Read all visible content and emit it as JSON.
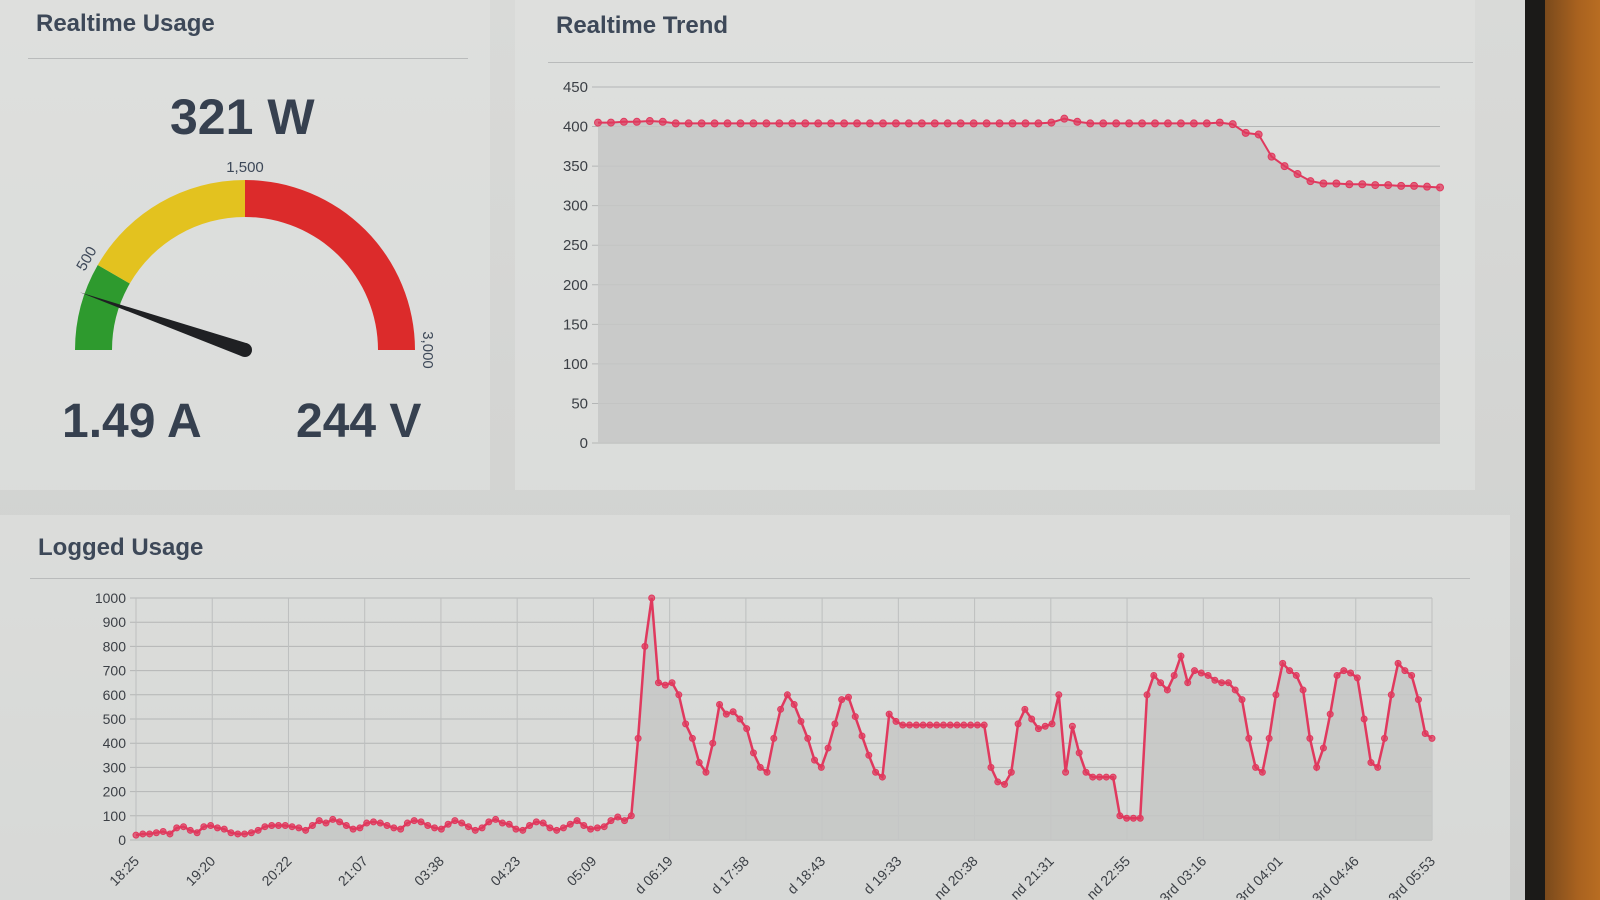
{
  "realtime_usage": {
    "title": "Realtime Usage",
    "power": "321 W",
    "current": "1.49 A",
    "voltage": "244 V",
    "gauge": {
      "value": 321,
      "min": 0,
      "max": 3000,
      "labels": [
        "500",
        "1,500",
        "3,000"
      ],
      "bands": [
        {
          "from": 0,
          "to": 500,
          "color": "#2e9a2e"
        },
        {
          "from": 500,
          "to": 1500,
          "color": "#e3c21f"
        },
        {
          "from": 1500,
          "to": 3000,
          "color": "#dc2b2b"
        }
      ]
    }
  },
  "realtime_trend": {
    "title": "Realtime Trend"
  },
  "logged_usage": {
    "title": "Logged Usage"
  },
  "colors": {
    "series": "#e0395e",
    "plot_fill": "#c6c7c6"
  },
  "chart_data": [
    {
      "type": "line",
      "title": "Realtime Trend",
      "xlabel": "",
      "ylabel": "",
      "ylim": [
        0,
        450
      ],
      "yticks": [
        "0",
        "50",
        "100",
        "150",
        "200",
        "250",
        "300",
        "350",
        "400",
        "450"
      ],
      "grid": true,
      "series": [
        {
          "values": [
            405,
            405,
            406,
            406,
            407,
            406,
            404,
            404,
            404,
            404,
            404,
            404,
            404,
            404,
            404,
            404,
            404,
            404,
            404,
            404,
            404,
            404,
            404,
            404,
            404,
            404,
            404,
            404,
            404,
            404,
            404,
            404,
            404,
            404,
            404,
            405,
            410,
            406,
            404,
            404,
            404,
            404,
            404,
            404,
            404,
            404,
            404,
            404,
            405,
            403,
            392,
            390,
            362,
            350,
            340,
            331,
            328,
            328,
            327,
            327,
            326,
            326,
            325,
            325,
            324,
            323
          ]
        }
      ]
    },
    {
      "type": "line",
      "title": "Logged Usage",
      "xlabel": "",
      "ylabel": "",
      "ylim": [
        0,
        1000
      ],
      "yticks": [
        "0",
        "100",
        "200",
        "300",
        "400",
        "500",
        "600",
        "700",
        "800",
        "900",
        "1000"
      ],
      "grid": true,
      "xticks": [
        "18:25",
        "19:20",
        "20:22",
        "21:07",
        "03:38",
        "04:23",
        "05:09",
        "d 06:19",
        "d 17:58",
        "d 18:43",
        "d 19:33",
        "nd 20:38",
        "nd 21:31",
        "nd 22:55",
        "3rd 03:16",
        "3rd 04:01",
        "3rd 04:46",
        "3rd 05:53"
      ],
      "series": [
        {
          "values": [
            20,
            25,
            25,
            30,
            35,
            25,
            50,
            55,
            40,
            30,
            55,
            60,
            50,
            45,
            30,
            25,
            25,
            30,
            40,
            55,
            60,
            60,
            60,
            55,
            50,
            40,
            60,
            80,
            70,
            85,
            75,
            60,
            45,
            50,
            70,
            75,
            70,
            60,
            50,
            45,
            70,
            80,
            75,
            60,
            50,
            45,
            65,
            80,
            70,
            55,
            40,
            50,
            75,
            85,
            70,
            65,
            45,
            40,
            60,
            75,
            70,
            50,
            40,
            50,
            65,
            80,
            60,
            45,
            50,
            55,
            80,
            95,
            80,
            100,
            420,
            800,
            1000,
            650,
            640,
            650,
            600,
            480,
            420,
            320,
            280,
            400,
            560,
            520,
            530,
            500,
            460,
            360,
            300,
            280,
            420,
            540,
            600,
            560,
            490,
            420,
            330,
            300,
            380,
            480,
            580,
            590,
            510,
            430,
            350,
            280,
            260,
            520,
            490,
            475,
            475,
            475,
            475,
            475,
            475,
            475,
            475,
            475,
            475,
            475,
            475,
            475,
            300,
            240,
            230,
            280,
            480,
            540,
            500,
            460,
            470,
            480,
            600,
            280,
            470,
            360,
            280,
            260,
            260,
            260,
            260,
            100,
            90,
            90,
            90,
            600,
            680,
            650,
            620,
            680,
            760,
            650,
            700,
            690,
            680,
            660,
            650,
            650,
            620,
            580,
            420,
            300,
            280,
            420,
            600,
            730,
            700,
            680,
            620,
            420,
            300,
            380,
            520,
            680,
            700,
            690,
            670,
            500,
            320,
            300,
            420,
            600,
            730,
            700,
            680,
            580,
            440,
            420
          ]
        }
      ]
    }
  ]
}
